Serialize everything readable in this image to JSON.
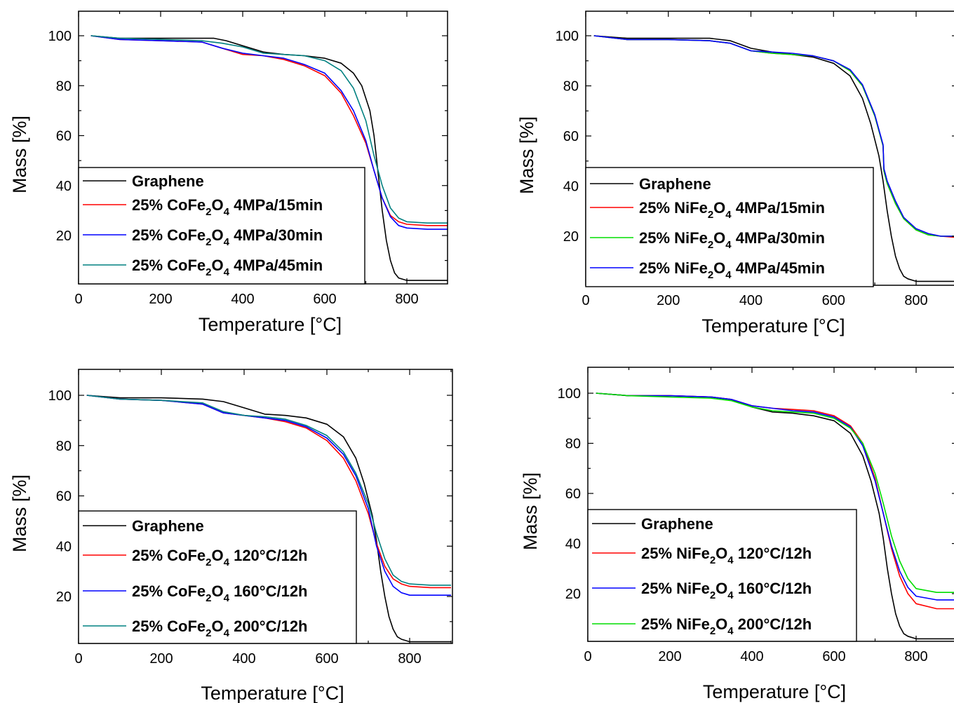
{
  "chart_data": [
    {
      "type": "line",
      "xlabel": "Temperature [°C]",
      "ylabel": "Mass [%]",
      "xlim": [
        0,
        900
      ],
      "ylim": [
        0,
        110
      ],
      "xticks": [
        0,
        200,
        400,
        600,
        800
      ],
      "yticks": [
        20,
        40,
        60,
        80,
        100
      ],
      "legend_position": "bottom-left",
      "series": [
        {
          "name": "Graphene",
          "color": "#000000",
          "x": [
            30,
            100,
            200,
            300,
            330,
            360,
            400,
            450,
            500,
            550,
            600,
            640,
            670,
            690,
            710,
            720,
            730,
            740,
            750,
            760,
            770,
            780,
            800,
            850,
            900
          ],
          "y": [
            100,
            99,
            99,
            99,
            99,
            98,
            96,
            93.5,
            92.5,
            92,
            91,
            89,
            85,
            80,
            70,
            60,
            45,
            30,
            18,
            10,
            5,
            3,
            2,
            2,
            2
          ]
        },
        {
          "name": "25% CoFe2O4 4MPa/15min",
          "color": "#ff0000",
          "x": [
            30,
            100,
            200,
            300,
            350,
            400,
            450,
            500,
            550,
            600,
            640,
            670,
            700,
            720,
            740,
            760,
            780,
            800,
            850,
            900
          ],
          "y": [
            100,
            98.5,
            98,
            97.5,
            95,
            92.5,
            92,
            90.5,
            88,
            84,
            77,
            68,
            57,
            46,
            35,
            28,
            25.5,
            24.5,
            24,
            24
          ]
        },
        {
          "name": "25% CoFe2O4 4MPa/30min",
          "color": "#0000ff",
          "x": [
            30,
            100,
            200,
            300,
            350,
            400,
            450,
            500,
            550,
            600,
            640,
            670,
            700,
            720,
            740,
            760,
            780,
            800,
            850,
            900
          ],
          "y": [
            100,
            98.5,
            98,
            97.5,
            95,
            93,
            92,
            91,
            88.5,
            85,
            78,
            70,
            58,
            46,
            35,
            27.5,
            24,
            23,
            22.5,
            22.5
          ]
        },
        {
          "name": "25% CoFe2O4 4MPa/45min",
          "color": "#008080",
          "x": [
            30,
            100,
            200,
            300,
            350,
            400,
            450,
            500,
            550,
            600,
            640,
            670,
            700,
            720,
            740,
            760,
            780,
            800,
            850,
            900
          ],
          "y": [
            100,
            99,
            98.5,
            98,
            97,
            95.5,
            93,
            92.5,
            92,
            90,
            86,
            79,
            66,
            52,
            40,
            31,
            27,
            25.5,
            25,
            25
          ]
        }
      ]
    },
    {
      "type": "line",
      "xlabel": "Temperature [°C]",
      "ylabel": "Mass [%]",
      "xlim": [
        0,
        900
      ],
      "ylim": [
        0,
        110
      ],
      "xticks": [
        0,
        200,
        400,
        600,
        800
      ],
      "yticks": [
        20,
        40,
        60,
        80,
        100
      ],
      "legend_position": "bottom-left",
      "series": [
        {
          "name": "Graphene",
          "color": "#000000",
          "x": [
            20,
            100,
            200,
            300,
            350,
            400,
            450,
            500,
            550,
            600,
            640,
            670,
            690,
            710,
            720,
            730,
            740,
            750,
            760,
            770,
            780,
            800,
            850,
            900
          ],
          "y": [
            100,
            99,
            99,
            99,
            98,
            95,
            93.5,
            92.5,
            91.5,
            89,
            84,
            75,
            65,
            52,
            42,
            30,
            20,
            12,
            7,
            4,
            3,
            2,
            2,
            2
          ]
        },
        {
          "name": "25% NiFe2O4 4MPa/15min",
          "color": "#ff0000",
          "x": [
            20,
            100,
            200,
            300,
            350,
            400,
            450,
            500,
            550,
            600,
            640,
            670,
            700,
            710,
            720,
            722,
            730,
            750,
            770,
            800,
            830,
            860,
            900
          ],
          "y": [
            100,
            98.5,
            98.5,
            98,
            97,
            94,
            93,
            92.5,
            92,
            90,
            86,
            80,
            68,
            62,
            56,
            46,
            41,
            33,
            27,
            22.5,
            20.5,
            20,
            19.5
          ]
        },
        {
          "name": "25% NiFe2O4 4MPa/30min",
          "color": "#00dd00",
          "x": [
            20,
            100,
            200,
            300,
            350,
            400,
            450,
            500,
            550,
            600,
            640,
            670,
            700,
            710,
            720,
            722,
            730,
            750,
            770,
            800,
            830,
            860,
            900
          ],
          "y": [
            100,
            98.5,
            98.5,
            98,
            97,
            94,
            93,
            92.5,
            92,
            90,
            86,
            80,
            68,
            62,
            56,
            46,
            41,
            33,
            27,
            22.5,
            20.5,
            20,
            20
          ]
        },
        {
          "name": "25% NiFe2O4 4MPa/45min",
          "color": "#0000ff",
          "x": [
            20,
            100,
            200,
            300,
            350,
            400,
            450,
            500,
            550,
            600,
            640,
            670,
            700,
            710,
            720,
            722,
            730,
            750,
            770,
            800,
            830,
            860,
            900
          ],
          "y": [
            100,
            98.5,
            98.5,
            98,
            97,
            94,
            93.5,
            93,
            92,
            90,
            86.5,
            80.5,
            68.5,
            62.5,
            56.5,
            47,
            42,
            34,
            27.5,
            23,
            21,
            20,
            20
          ]
        }
      ]
    },
    {
      "type": "line",
      "xlabel": "Temperature [°C]",
      "ylabel": "Mass [%]",
      "xlim": [
        0,
        900
      ],
      "ylim": [
        0,
        110
      ],
      "xticks": [
        0,
        200,
        400,
        600,
        800
      ],
      "yticks": [
        20,
        40,
        60,
        80,
        100
      ],
      "legend_position": "bottom-left",
      "series": [
        {
          "name": "Graphene",
          "color": "#000000",
          "x": [
            20,
            100,
            200,
            300,
            350,
            400,
            450,
            500,
            550,
            600,
            640,
            670,
            690,
            710,
            720,
            730,
            740,
            750,
            760,
            770,
            780,
            800,
            850,
            900
          ],
          "y": [
            100,
            99,
            99,
            98.5,
            97.5,
            95,
            92.5,
            92,
            91,
            88.5,
            83.5,
            75,
            65,
            52,
            42,
            30,
            20,
            12,
            7,
            4,
            3,
            2,
            2,
            2
          ]
        },
        {
          "name": "25% CoFe2O4 120°C/12h",
          "color": "#ff0000",
          "x": [
            20,
            100,
            200,
            300,
            350,
            400,
            450,
            500,
            550,
            600,
            640,
            670,
            700,
            720,
            740,
            760,
            780,
            800,
            850,
            900
          ],
          "y": [
            100,
            98.5,
            98,
            96.5,
            93,
            92,
            91,
            89.5,
            87,
            82,
            75,
            66,
            53,
            41,
            32,
            27,
            25,
            24,
            23.5,
            23.5
          ]
        },
        {
          "name": "25% CoFe2O4 160°C/12h",
          "color": "#0000ff",
          "x": [
            20,
            100,
            200,
            300,
            350,
            400,
            450,
            500,
            550,
            600,
            640,
            670,
            700,
            720,
            740,
            760,
            780,
            800,
            850,
            900
          ],
          "y": [
            100,
            98.5,
            98,
            96.5,
            93,
            92,
            91,
            90,
            87.5,
            83,
            76.5,
            68,
            55,
            40,
            30,
            24,
            21.5,
            20.5,
            20.5,
            20.5
          ]
        },
        {
          "name": "25% CoFe2O4 200°C/12h",
          "color": "#008080",
          "x": [
            20,
            100,
            200,
            300,
            350,
            400,
            450,
            500,
            550,
            600,
            640,
            670,
            700,
            720,
            740,
            760,
            780,
            800,
            850,
            900
          ],
          "y": [
            100,
            98.5,
            98,
            97,
            93.5,
            92,
            91.5,
            90.5,
            88,
            84,
            77.5,
            69,
            57,
            45,
            35,
            28.5,
            26,
            25,
            24.5,
            24.5
          ]
        }
      ]
    },
    {
      "type": "line",
      "xlabel": "Temperature [°C]",
      "ylabel": "Mass [%]",
      "xlim": [
        0,
        900
      ],
      "ylim": [
        0,
        110
      ],
      "xticks": [
        0,
        200,
        400,
        600,
        800
      ],
      "yticks": [
        20,
        40,
        60,
        80,
        100
      ],
      "legend_position": "bottom-left",
      "series": [
        {
          "name": "Graphene",
          "color": "#000000",
          "x": [
            20,
            100,
            200,
            300,
            350,
            400,
            450,
            500,
            550,
            600,
            640,
            670,
            690,
            710,
            720,
            730,
            740,
            750,
            760,
            770,
            780,
            800,
            850,
            900
          ],
          "y": [
            100,
            99,
            99,
            98.5,
            97.5,
            94.5,
            92.5,
            92,
            91,
            89,
            84,
            75,
            65,
            52,
            42,
            30,
            20,
            12,
            7,
            4,
            3,
            2,
            2,
            2
          ]
        },
        {
          "name": "25% NiFe2O4 120°C/12h",
          "color": "#ff0000",
          "x": [
            20,
            100,
            200,
            300,
            350,
            400,
            450,
            500,
            550,
            600,
            640,
            670,
            700,
            720,
            740,
            760,
            780,
            800,
            850,
            900
          ],
          "y": [
            100,
            99,
            99,
            98.5,
            97.5,
            95,
            94,
            93.5,
            93,
            91,
            87,
            80,
            66,
            52,
            38,
            27,
            20,
            16,
            14,
            14
          ]
        },
        {
          "name": "25% NiFe2O4 160°C/12h",
          "color": "#0000ff",
          "x": [
            20,
            100,
            200,
            300,
            350,
            400,
            450,
            500,
            550,
            600,
            640,
            670,
            700,
            720,
            740,
            760,
            780,
            800,
            850,
            900
          ],
          "y": [
            100,
            99,
            99,
            98.5,
            97.5,
            95,
            94,
            93,
            92.5,
            90.5,
            86.5,
            79,
            65,
            52,
            39,
            29,
            22.5,
            19,
            17.5,
            17.5
          ]
        },
        {
          "name": "25% NiFe2O4 200°C/12h",
          "color": "#00dd00",
          "x": [
            20,
            100,
            200,
            300,
            350,
            400,
            450,
            500,
            550,
            600,
            640,
            670,
            700,
            720,
            740,
            760,
            780,
            800,
            850,
            900
          ],
          "y": [
            100,
            99,
            98.5,
            98,
            97,
            94.5,
            93,
            92.5,
            92,
            90,
            86,
            80,
            68,
            56,
            43,
            33,
            26,
            22,
            20.5,
            20.5
          ]
        }
      ]
    }
  ],
  "legends": [
    {
      "graphene": "Graphene",
      "items": [
        {
          "pre": "25% CoFe",
          "sub1": "2",
          "mid": "O",
          "sub2": "4",
          "post": " 4MPa/15min"
        },
        {
          "pre": "25% CoFe",
          "sub1": "2",
          "mid": "O",
          "sub2": "4",
          "post": " 4MPa/30min"
        },
        {
          "pre": "25% CoFe",
          "sub1": "2",
          "mid": "O",
          "sub2": "4",
          "post": " 4MPa/45min"
        }
      ]
    },
    {
      "graphene": "Graphene",
      "items": [
        {
          "pre": "25% NiFe",
          "sub1": "2",
          "mid": "O",
          "sub2": "4",
          "post": " 4MPa/15min"
        },
        {
          "pre": "25% NiFe",
          "sub1": "2",
          "mid": "O",
          "sub2": "4",
          "post": " 4MPa/30min"
        },
        {
          "pre": "25% NiFe",
          "sub1": "2",
          "mid": "O",
          "sub2": "4",
          "post": " 4MPa/45min"
        }
      ]
    },
    {
      "graphene": "Graphene",
      "items": [
        {
          "pre": "25% CoFe",
          "sub1": "2",
          "mid": "O",
          "sub2": "4",
          "post": " 120°C/12h"
        },
        {
          "pre": "25% CoFe",
          "sub1": "2",
          "mid": "O",
          "sub2": "4",
          "post": " 160°C/12h"
        },
        {
          "pre": "25% CoFe",
          "sub1": "2",
          "mid": "O",
          "sub2": "4",
          "post": " 200°C/12h"
        }
      ]
    },
    {
      "graphene": "Graphene",
      "items": [
        {
          "pre": "25% NiFe",
          "sub1": "2",
          "mid": "O",
          "sub2": "4",
          "post": " 120°C/12h"
        },
        {
          "pre": "25% NiFe",
          "sub1": "2",
          "mid": "O",
          "sub2": "4",
          "post": " 160°C/12h"
        },
        {
          "pre": "25% NiFe",
          "sub1": "2",
          "mid": "O",
          "sub2": "4",
          "post": " 200°C/12h"
        }
      ]
    }
  ]
}
